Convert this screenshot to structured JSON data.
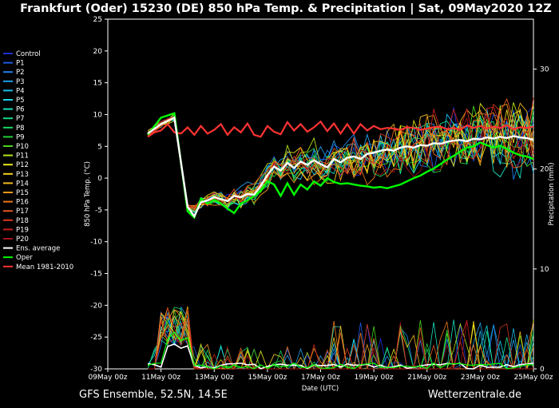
{
  "title": "Frankfurt (Oder) 15230 (DE)  850 hPa Temp. & Precipitation | Sat, 09May2020 12Z",
  "footer_left": "GFS Ensemble, 52.5N, 14.5E",
  "footer_right": "Wetterzentrale.de",
  "chart_data": {
    "type": "line",
    "xlabel": "Date (UTC)",
    "ylabel": "850 hPa Temp. (°C)",
    "y2label": "Precipitation (mm)",
    "ylim": [
      -30,
      25
    ],
    "y2lim": [
      0,
      35
    ],
    "xlim": [
      0,
      384
    ],
    "x_unit": "hours after 09May 00z",
    "x_ticks": [
      0,
      48,
      96,
      144,
      192,
      240,
      288,
      336,
      384
    ],
    "x_tick_labels": [
      "09May 00z",
      "11May 00z",
      "13May 00z",
      "15May 00z",
      "17May 00z",
      "19May 00z",
      "21May 00z",
      "23May 00z",
      "25May 00z"
    ],
    "y_ticks": [
      25,
      20,
      15,
      10,
      5,
      0,
      -5,
      -10,
      -15,
      -20,
      -25,
      -30
    ],
    "y2_ticks": [
      30,
      20,
      10,
      0
    ],
    "grid": false,
    "legend_position": "left",
    "mean_1981_2010": {
      "name": "Mean 1981-2010",
      "color": "#ff3333",
      "x": [
        36,
        42,
        48,
        54,
        60,
        66,
        72,
        78,
        84,
        90,
        96,
        102,
        108,
        114,
        120,
        126,
        132,
        138,
        144,
        150,
        156,
        162,
        168,
        174,
        180,
        186,
        192,
        198,
        204,
        210,
        216,
        222,
        228,
        234,
        240,
        246,
        252,
        258,
        264,
        270,
        276,
        282,
        288,
        294,
        300,
        306,
        312,
        318,
        324,
        330,
        336,
        342,
        348,
        354,
        360,
        366,
        372,
        378,
        384
      ],
      "y": [
        6.5,
        7.2,
        7.5,
        8.5,
        7.2,
        7.0,
        8.0,
        6.8,
        8.2,
        7.0,
        7.6,
        8.5,
        6.8,
        8.0,
        7.2,
        8.6,
        6.8,
        6.5,
        8.2,
        7.3,
        6.9,
        8.8,
        7.5,
        8.5,
        7.3,
        8.0,
        8.9,
        7.4,
        8.6,
        7.0,
        8.5,
        7.0,
        8.5,
        7.5,
        8.2,
        7.7,
        7.9,
        7.8,
        7.6,
        8.0,
        7.9,
        7.6,
        7.8,
        8.0,
        8.1,
        7.7,
        7.9,
        7.6,
        8.3,
        7.9,
        8.2,
        7.8,
        8.1,
        7.9,
        8.3,
        7.7,
        8.0,
        7.9,
        8.1
      ]
    },
    "ensemble_average": {
      "name": "Ens. average",
      "color": "#ffffff",
      "x": [
        36,
        48,
        60,
        72,
        78,
        84,
        90,
        96,
        102,
        108,
        114,
        120,
        126,
        132,
        138,
        144,
        150,
        156,
        162,
        168,
        174,
        180,
        186,
        192,
        198,
        204,
        210,
        216,
        222,
        228,
        234,
        240,
        246,
        252,
        258,
        264,
        270,
        276,
        282,
        288,
        294,
        300,
        306,
        312,
        318,
        324,
        330,
        336,
        342,
        348,
        354,
        360,
        366,
        372,
        378,
        384
      ],
      "y": [
        7.0,
        8.5,
        9.5,
        -4.5,
        -6.0,
        -3.8,
        -3.5,
        -3.0,
        -3.3,
        -3.6,
        -2.8,
        -3.0,
        -2.5,
        -2.6,
        -1.2,
        0.5,
        1.8,
        1.2,
        2.4,
        1.6,
        2.6,
        2.1,
        2.8,
        2.2,
        1.7,
        3.0,
        2.5,
        3.2,
        3.4,
        3.0,
        3.8,
        4.0,
        4.3,
        4.5,
        4.3,
        4.8,
        5.0,
        4.8,
        5.2,
        5.1,
        5.5,
        5.4,
        5.7,
        5.9,
        6.0,
        5.8,
        6.2,
        6.1,
        6.4,
        6.2,
        6.5,
        6.3,
        6.6,
        6.4,
        6.3,
        6.0
      ]
    },
    "oper": {
      "name": "Oper",
      "color": "#00ff00",
      "x": [
        36,
        48,
        60,
        72,
        78,
        84,
        90,
        96,
        102,
        108,
        114,
        120,
        126,
        132,
        138,
        144,
        150,
        156,
        162,
        168,
        174,
        180,
        186,
        192,
        198,
        204,
        210,
        216,
        222,
        228,
        234,
        240,
        246,
        252,
        258,
        264,
        270,
        276,
        282,
        288,
        294,
        300,
        306,
        312,
        318,
        324,
        330,
        336,
        342,
        348,
        354,
        360,
        366,
        372,
        378,
        384
      ],
      "y": [
        6.8,
        9.5,
        10.2,
        -5.2,
        -6.2,
        -3.2,
        -4.0,
        -3.4,
        -4.0,
        -4.8,
        -5.5,
        -4.0,
        -3.5,
        -2.8,
        -2.0,
        -0.5,
        -1.0,
        -2.8,
        -0.8,
        -2.6,
        -1.0,
        -1.8,
        -0.5,
        -1.2,
        0.0,
        -0.6,
        -0.9,
        -0.8,
        -1.0,
        -1.2,
        -1.3,
        -1.5,
        -1.4,
        -1.6,
        -1.3,
        -1.0,
        -0.5,
        0.0,
        0.4,
        1.0,
        1.5,
        2.2,
        2.9,
        3.5,
        4.2,
        4.8,
        5.0,
        5.6,
        5.2,
        4.8,
        5.1,
        4.6,
        4.0,
        3.6,
        3.4,
        3.0
      ]
    },
    "members": [
      {
        "name": "Control",
        "color": "#1f2ed8"
      },
      {
        "name": "P1",
        "color": "#1e5be3"
      },
      {
        "name": "P2",
        "color": "#1e7fe8"
      },
      {
        "name": "P3",
        "color": "#1ea0ea"
      },
      {
        "name": "P4",
        "color": "#18bdf0"
      },
      {
        "name": "P5",
        "color": "#17d6e6"
      },
      {
        "name": "P6",
        "color": "#16e0bf"
      },
      {
        "name": "P7",
        "color": "#16dc8a"
      },
      {
        "name": "P8",
        "color": "#18d860"
      },
      {
        "name": "P9",
        "color": "#22d036"
      },
      {
        "name": "P10",
        "color": "#4ad41c"
      },
      {
        "name": "P11",
        "color": "#b7e21a"
      },
      {
        "name": "P12",
        "color": "#e6e81a"
      },
      {
        "name": "P13",
        "color": "#f0d21a"
      },
      {
        "name": "P14",
        "color": "#f2b81a"
      },
      {
        "name": "P15",
        "color": "#f29a1c"
      },
      {
        "name": "P16",
        "color": "#e9781e"
      },
      {
        "name": "P17",
        "color": "#e3591e"
      },
      {
        "name": "P18",
        "color": "#d9381e"
      },
      {
        "name": "P19",
        "color": "#c8201c"
      },
      {
        "name": "P20",
        "color": "#a0141a"
      }
    ]
  }
}
